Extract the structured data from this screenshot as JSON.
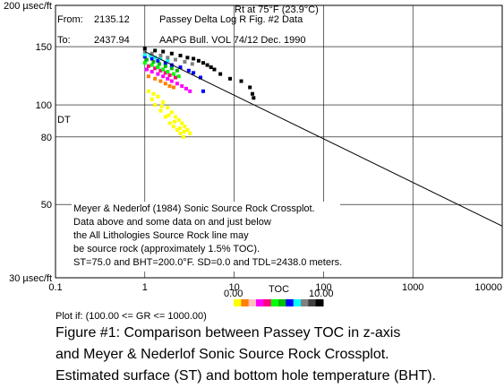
{
  "chart_data": {
    "type": "scatter",
    "x_scale": "log",
    "y_scale": "log",
    "xlim": [
      0.1,
      10000
    ],
    "ylim": [
      30,
      200
    ],
    "x_ticks": [
      0.1,
      1,
      10,
      100,
      1000,
      10000
    ],
    "x_tick_labels": [
      "0.1",
      "1",
      "10",
      "100",
      "1000",
      "10000"
    ],
    "y_ticks": [
      30,
      50,
      80,
      100,
      150,
      200
    ],
    "y_tick_labels": [
      "30 µsec/ft",
      "50",
      "80",
      "100",
      "150",
      "200 µsec/ft"
    ],
    "ylabel": "DT",
    "header": {
      "from_label": "From:",
      "from_value": "2135.12",
      "to_label": "To:",
      "to_value": "2437.94",
      "rt_note": "Rt at 75°F (23.9°C)",
      "source_1": "Passey Delta Log R Fig. #2 Data",
      "source_2": "AAPG Bull. VOL 74/12 Dec. 1990"
    },
    "annotation_lines": [
      "Meyer & Nederlof (1984) Sonic Source Rock Crossplot.",
      "Data above and some data on and just below",
      "the All Lithologies Source Rock line may",
      "be source rock (approximately 1.5% TOC).",
      "ST=75.0 and BHT=200.0°F. SD=0.0 and TDL=2438.0 meters."
    ],
    "source_rock_line": {
      "x": [
        1,
        10000
      ],
      "y": [
        145,
        43
      ]
    },
    "series": [
      {
        "color": "#ffff00",
        "points": [
          [
            1.1,
            110
          ],
          [
            1.2,
            104
          ],
          [
            1.3,
            100
          ],
          [
            1.4,
            106
          ],
          [
            1.5,
            96
          ],
          [
            1.6,
            102
          ],
          [
            1.7,
            92
          ],
          [
            1.8,
            98
          ],
          [
            1.9,
            88
          ],
          [
            2.0,
            95
          ],
          [
            2.1,
            86
          ],
          [
            2.2,
            92
          ],
          [
            2.3,
            84
          ],
          [
            2.4,
            90
          ],
          [
            2.5,
            82
          ],
          [
            2.6,
            88
          ],
          [
            2.7,
            80
          ],
          [
            2.8,
            86
          ],
          [
            3.0,
            84
          ],
          [
            3.2,
            82
          ],
          [
            1.25,
            108
          ],
          [
            1.55,
            99
          ],
          [
            1.85,
            93
          ],
          [
            2.15,
            89
          ],
          [
            2.45,
            85
          ],
          [
            2.75,
            83
          ]
        ]
      },
      {
        "color": "#ff8000",
        "points": [
          [
            1.1,
            122
          ],
          [
            1.3,
            120
          ],
          [
            1.5,
            118
          ],
          [
            1.7,
            116
          ],
          [
            1.9,
            114
          ],
          [
            2.1,
            113
          ]
        ]
      },
      {
        "color": "#ff00ff",
        "points": [
          [
            1.05,
            128
          ],
          [
            1.2,
            126
          ],
          [
            1.4,
            124
          ],
          [
            1.6,
            122
          ],
          [
            1.8,
            120
          ],
          [
            2.0,
            118
          ],
          [
            2.3,
            116
          ],
          [
            2.6,
            114
          ],
          [
            2.9,
            112
          ],
          [
            3.2,
            110
          ]
        ]
      },
      {
        "color": "#ff0080",
        "points": [
          [
            1.1,
            131
          ],
          [
            1.3,
            129
          ],
          [
            1.5,
            127
          ],
          [
            1.7,
            125
          ],
          [
            1.9,
            123
          ],
          [
            2.2,
            121
          ]
        ]
      },
      {
        "color": "#00ff00",
        "points": [
          [
            1.0,
            134
          ],
          [
            1.2,
            132
          ],
          [
            1.4,
            130
          ],
          [
            1.6,
            128
          ],
          [
            1.8,
            126
          ],
          [
            2.1,
            124
          ],
          [
            2.4,
            122
          ]
        ]
      },
      {
        "color": "#00c000",
        "points": [
          [
            1.05,
            137
          ],
          [
            1.25,
            135
          ],
          [
            1.45,
            133
          ],
          [
            1.7,
            131
          ],
          [
            2.0,
            129
          ],
          [
            2.3,
            127
          ]
        ]
      },
      {
        "color": "#0000ff",
        "points": [
          [
            1.0,
            140
          ],
          [
            1.2,
            138
          ],
          [
            1.4,
            136
          ],
          [
            1.7,
            134
          ],
          [
            2.0,
            132
          ],
          [
            2.5,
            130
          ],
          [
            3.1,
            127
          ],
          [
            3.5,
            125
          ],
          [
            4.2,
            121
          ],
          [
            4.5,
            110
          ]
        ]
      },
      {
        "color": "#00ffff",
        "points": [
          [
            1.0,
            142
          ],
          [
            1.15,
            141
          ],
          [
            1.3,
            139
          ],
          [
            1.5,
            138
          ],
          [
            1.8,
            136
          ]
        ]
      },
      {
        "color": "#808080",
        "points": [
          [
            1.0,
            145
          ],
          [
            1.2,
            143
          ],
          [
            1.5,
            141
          ],
          [
            1.8,
            139
          ],
          [
            2.2,
            137
          ],
          [
            2.8,
            135
          ],
          [
            3.4,
            133
          ]
        ]
      },
      {
        "color": "#000000",
        "points": [
          [
            1.0,
            148
          ],
          [
            1.3,
            146
          ],
          [
            1.6,
            145
          ],
          [
            2.0,
            143
          ],
          [
            2.5,
            141
          ],
          [
            3.0,
            139
          ],
          [
            3.5,
            138
          ],
          [
            4.0,
            136
          ],
          [
            4.5,
            134
          ],
          [
            5.0,
            132
          ],
          [
            5.5,
            130
          ],
          [
            6.0,
            128
          ],
          [
            7.0,
            124
          ],
          [
            9.0,
            120
          ],
          [
            12.0,
            118
          ],
          [
            15.0,
            113
          ],
          [
            16.0,
            108
          ],
          [
            16.5,
            105
          ]
        ]
      }
    ],
    "colorbar": {
      "title": "TOC",
      "min_label": "0.00",
      "max_label": "10.00",
      "colors": [
        "#ffff00",
        "#ff8000",
        "#ffc0c0",
        "#ff00ff",
        "#ff0080",
        "#00ff00",
        "#00c000",
        "#0000ff",
        "#00ffff",
        "#808080",
        "#404040",
        "#000000"
      ]
    },
    "plot_filter": "Plot if: (100.00 <= GR <= 1000.00)"
  },
  "caption": [
    "Figure #1: Comparison between Passey TOC in z-axis",
    "and Meyer & Nederlof Sonic Source Rock Crossplot.",
    "Estimated surface (ST) and bottom hole temperature (BHT)."
  ]
}
